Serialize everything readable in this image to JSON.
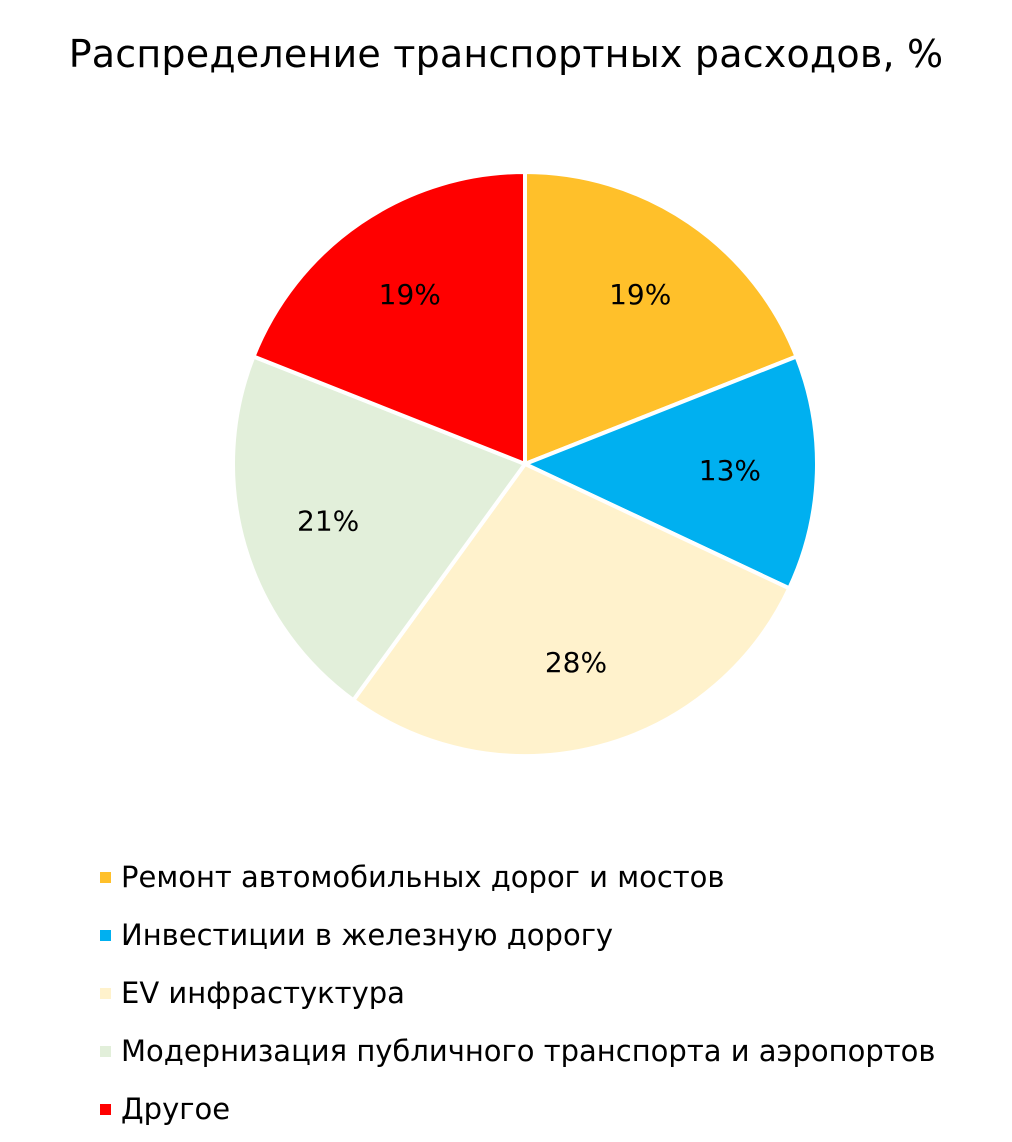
{
  "chart_data": {
    "type": "pie",
    "title": "Распределение транспортных расходов, %",
    "categories": [
      "Ремонт автомобильных дорог и мостов",
      "Инвестиции в железную дорогу",
      "EV инфрастуктура",
      "Модернизация публичного транспорта и аэропортов",
      "Другое"
    ],
    "values": [
      19,
      13,
      28,
      21,
      19
    ],
    "data_labels": [
      "19%",
      "13%",
      "28%",
      "21%",
      "19%"
    ],
    "colors": [
      "#FFC02A",
      "#00B0F0",
      "#FFF2CC",
      "#E2EFDA",
      "#FF0000"
    ],
    "start_angle_deg": 0,
    "direction": "clockwise",
    "legend_position": "bottom-left"
  }
}
